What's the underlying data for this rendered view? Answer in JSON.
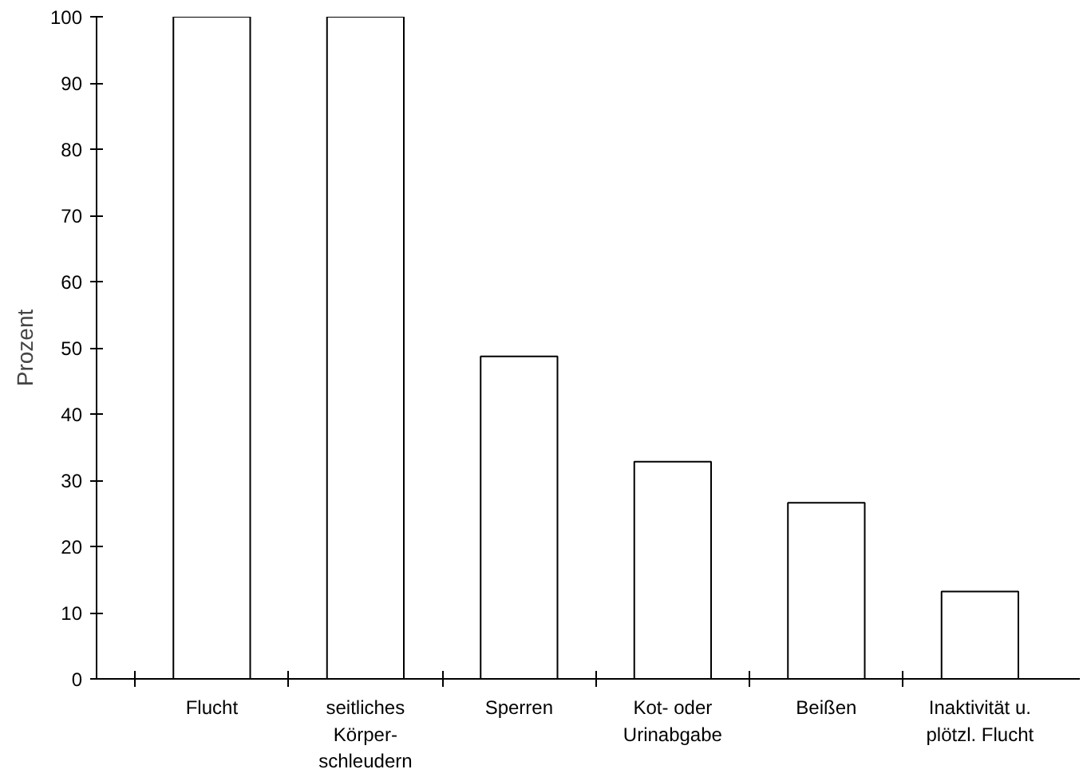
{
  "chart_data": {
    "type": "bar",
    "ylabel": "Prozent",
    "categories": [
      "Flucht",
      "seitliches\nKörper-\nschleudern",
      "Sperren",
      "Kot- oder\nUrinabgabe",
      "Beißen",
      "Inaktivität u.\nplötzl. Flucht"
    ],
    "values": [
      100,
      100,
      48.7,
      32.8,
      26.6,
      13.2
    ],
    "color": "#ffffff",
    "ylim": [
      0,
      100
    ],
    "yticks": [
      0,
      10,
      20,
      30,
      40,
      50,
      60,
      70,
      80,
      90,
      100
    ],
    "grid": false
  }
}
